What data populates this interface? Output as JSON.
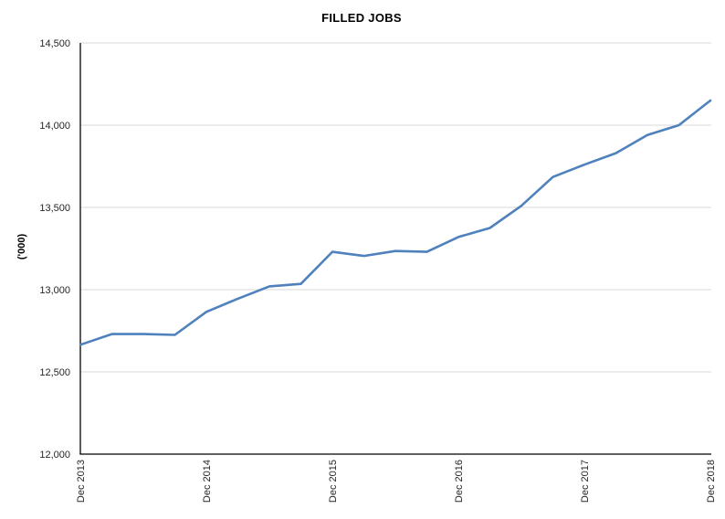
{
  "chart_data": {
    "type": "line",
    "title": "FILLED JOBS",
    "ylabel": "('000)",
    "xlabel": "",
    "x": [
      "Dec 2013",
      "Mar 2014",
      "Jun 2014",
      "Sep 2014",
      "Dec 2014",
      "Mar 2015",
      "Jun 2015",
      "Sep 2015",
      "Dec 2015",
      "Mar 2016",
      "Jun 2016",
      "Sep 2016",
      "Dec 2016",
      "Mar 2017",
      "Jun 2017",
      "Sep 2017",
      "Dec 2017",
      "Mar 2018",
      "Jun 2018",
      "Sep 2018",
      "Dec 2018"
    ],
    "series": [
      {
        "name": "Filled jobs",
        "values": [
          12665,
          12730,
          12730,
          12725,
          12865,
          12945,
          13020,
          13035,
          13230,
          13205,
          13235,
          13230,
          13320,
          13375,
          13510,
          13685,
          13760,
          13830,
          13940,
          14000,
          14150
        ]
      }
    ],
    "x_tick_labels": [
      "Dec 2013",
      "Dec 2014",
      "Dec 2015",
      "Dec 2016",
      "Dec 2017",
      "Dec 2018"
    ],
    "y_ticks": [
      12000,
      12500,
      13000,
      13500,
      14000,
      14500
    ],
    "y_tick_labels": [
      "12,000",
      "12,500",
      "13,000",
      "13,500",
      "14,000",
      "14,500"
    ],
    "ylim": [
      12000,
      14500
    ],
    "grid": "horizontal",
    "legend": "none",
    "colors": {
      "line": "#4f81bd",
      "gridline": "#d9d9d9",
      "axis": "#000000",
      "tick_text": "#262626",
      "title_text": "#000000",
      "background": "#ffffff"
    }
  }
}
